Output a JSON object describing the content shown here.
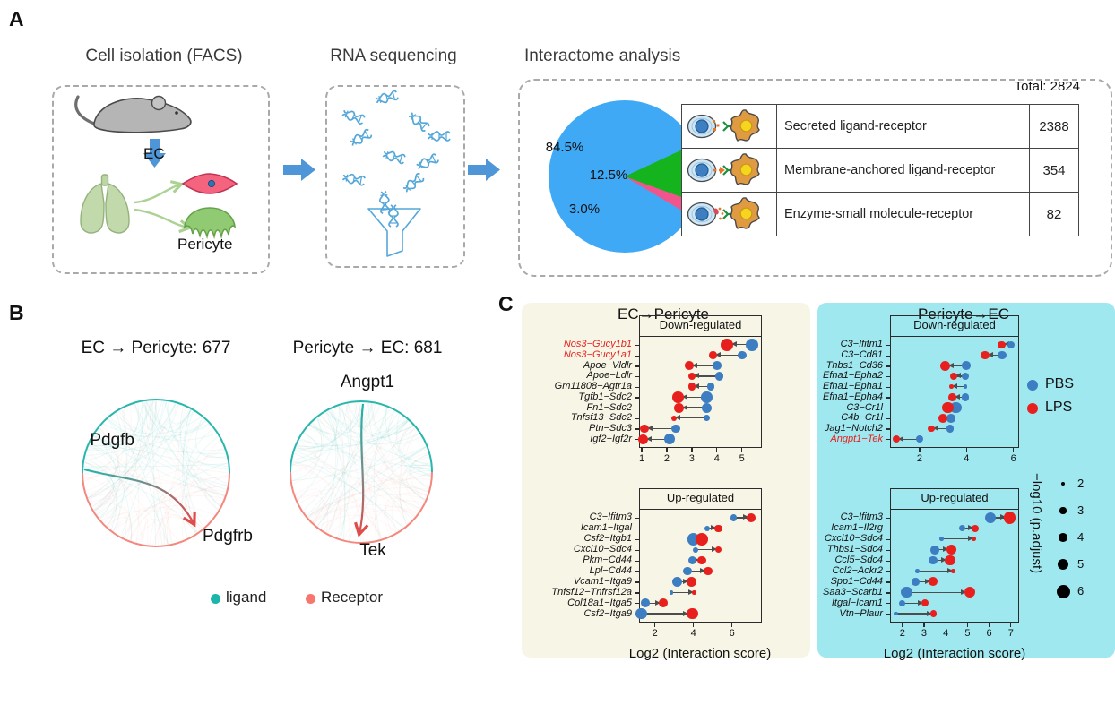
{
  "panels": {
    "a_label": "A",
    "b_label": "B",
    "c_label": "C"
  },
  "panel_a": {
    "step1_title": "Cell isolation (FACS)",
    "step2_title": "RNA sequencing",
    "step3_title": "Interactome analysis",
    "ec_label": "EC",
    "pericyte_label": "Pericyte",
    "total_label": "Total: 2824"
  },
  "panel_b": {
    "left_title": "EC → Pericyte: 677",
    "right_title": "Pericyte → EC: 681",
    "left_ligand": "Pdgfb",
    "left_receptor": "Pdgfrb",
    "right_ligand": "Angpt1",
    "right_receptor": "Tek",
    "ligand_color": "#1CB5A9",
    "receptor_color": "#F8766D",
    "legend": [
      {
        "label": "ligand",
        "color": "#1CB5A9"
      },
      {
        "label": "Receptor",
        "color": "#F8766D"
      }
    ]
  },
  "panel_c": {
    "left_title": "EC→Pericyte",
    "right_title": "Pericyte→EC",
    "xlabel": "Log2 (Interaction score)",
    "left_bg": "#F7F6E6",
    "right_bg": "#9FE8F0",
    "highlight_color": "#E8201D",
    "series_legend": [
      {
        "label": "PBS",
        "color": "#3D7DC1"
      },
      {
        "label": "LPS",
        "color": "#E8201D"
      }
    ],
    "size_legend": {
      "title": "−log10 (p.adjust)",
      "values": [
        2,
        3,
        4,
        5,
        6
      ]
    }
  },
  "chart_data": [
    {
      "type": "pie",
      "title": "Interactome analysis",
      "total": 2824,
      "total_label": "Total: 2824",
      "slices": [
        {
          "pct_label": "84.5%",
          "value": 84.5,
          "color": "#3FA9F5",
          "name": "Secreted ligand-receptor",
          "count": "2388",
          "variant": "secreted"
        },
        {
          "pct_label": "12.5%",
          "value": 12.5,
          "color": "#15B41F",
          "name": "Membrane-anchored ligand-receptor",
          "count": "354",
          "variant": "membrane"
        },
        {
          "pct_label": "3.0%",
          "value": 3.0,
          "color": "#F2548C",
          "name": "Enzyme-small molecule-receptor",
          "count": "82",
          "variant": "enzyme"
        }
      ]
    },
    {
      "type": "scatter",
      "title": "EC→Pericyte",
      "subtitle": "Down-regulated",
      "xlabel": "Log2 (Interaction score)",
      "xlim": [
        0.89,
        5.8
      ],
      "xticks": [
        1,
        2,
        3,
        4,
        5
      ],
      "series": [
        "PBS",
        "LPS"
      ],
      "rows": [
        {
          "pair": "Nos3−Gucy1b1",
          "highlight": true,
          "lps": 4.4,
          "pbs": 5.4,
          "lps_logp": 5.5,
          "pbs_logp": 5.5
        },
        {
          "pair": "Nos3−Gucy1a1",
          "highlight": true,
          "lps": 3.85,
          "pbs": 5.0,
          "lps_logp": 3.5,
          "pbs_logp": 4
        },
        {
          "pair": "Apoe−Vldlr",
          "lps": 2.9,
          "pbs": 4.0,
          "lps_logp": 4,
          "pbs_logp": 4
        },
        {
          "pair": "Apoe−Ldlr",
          "lps": 3.0,
          "pbs": 4.1,
          "lps_logp": 3.5,
          "pbs_logp": 4
        },
        {
          "pair": "Gm11808−Agtr1a",
          "lps": 3.0,
          "pbs": 3.75,
          "lps_logp": 3.5,
          "pbs_logp": 3.5
        },
        {
          "pair": "Tgfb1−Sdc2",
          "lps": 2.45,
          "pbs": 3.6,
          "lps_logp": 5,
          "pbs_logp": 5
        },
        {
          "pair": "Fn1−Sdc2",
          "lps": 2.5,
          "pbs": 3.6,
          "lps_logp": 4.5,
          "pbs_logp": 4.5
        },
        {
          "pair": "Tnfsf13−Sdc2",
          "lps": 2.3,
          "pbs": 3.6,
          "lps_logp": 2.5,
          "pbs_logp": 3
        },
        {
          "pair": "Ptn−Sdc3",
          "lps": 1.1,
          "pbs": 2.35,
          "lps_logp": 4,
          "pbs_logp": 4
        },
        {
          "pair": "Igf2−Igf2r",
          "lps": 1.05,
          "pbs": 2.1,
          "lps_logp": 4.5,
          "pbs_logp": 5
        }
      ]
    },
    {
      "type": "scatter",
      "title": "EC→Pericyte",
      "subtitle": "Up-regulated",
      "xlabel": "Log2 (Interaction score)",
      "xlim": [
        1.18,
        7.55
      ],
      "xticks": [
        2,
        4,
        6
      ],
      "series": [
        "PBS",
        "LPS"
      ],
      "rows": [
        {
          "pair": "C3−Ifitm3",
          "pbs": 6.1,
          "lps": 7.0,
          "pbs_logp": 3,
          "lps_logp": 4
        },
        {
          "pair": "Icam1−Itgal",
          "pbs": 4.7,
          "lps": 5.3,
          "pbs_logp": 2.5,
          "lps_logp": 3.5
        },
        {
          "pair": "Csf2−Itgb1",
          "pbs": 4.0,
          "lps": 4.45,
          "pbs_logp": 5.5,
          "lps_logp": 5.5
        },
        {
          "pair": "Cxcl10−Sdc4",
          "pbs": 4.1,
          "lps": 5.3,
          "pbs_logp": 2.5,
          "lps_logp": 3
        },
        {
          "pair": "Pkm−Cd44",
          "pbs": 3.95,
          "lps": 4.45,
          "pbs_logp": 4,
          "lps_logp": 4
        },
        {
          "pair": "Lpl−Cd44",
          "pbs": 3.7,
          "lps": 4.75,
          "pbs_logp": 4,
          "lps_logp": 4
        },
        {
          "pair": "Vcam1−Itga9",
          "pbs": 3.15,
          "lps": 3.9,
          "pbs_logp": 4.5,
          "lps_logp": 4.5
        },
        {
          "pair": "Tnfsf12−Tnfrsf12a",
          "pbs": 2.85,
          "lps": 4.05,
          "pbs_logp": 2,
          "lps_logp": 2,
          "arrow": true
        },
        {
          "pair": "Col18a1−Itga5",
          "pbs": 1.5,
          "lps": 2.45,
          "pbs_logp": 4,
          "lps_logp": 4
        },
        {
          "pair": "Csf2−Itga9",
          "pbs": 1.3,
          "lps": 3.95,
          "pbs_logp": 5,
          "lps_logp": 5
        }
      ]
    },
    {
      "type": "scatter",
      "title": "Pericyte→EC",
      "subtitle": "Down-regulated",
      "xlabel": "Log2 (Interaction score)",
      "xlim": [
        0.74,
        6.24
      ],
      "xticks": [
        2,
        4,
        6
      ],
      "series": [
        "PBS",
        "LPS"
      ],
      "rows": [
        {
          "pair": "C3−Ifitm1",
          "lps": 5.5,
          "pbs": 5.9,
          "lps_logp": 3.5,
          "pbs_logp": 3.5
        },
        {
          "pair": "C3−Cd81",
          "lps": 4.8,
          "pbs": 5.5,
          "lps_logp": 4,
          "pbs_logp": 4
        },
        {
          "pair": "Thbs1−Cd36",
          "lps": 3.1,
          "pbs": 4.0,
          "lps_logp": 4.5,
          "pbs_logp": 4
        },
        {
          "pair": "Efna1−Epha2",
          "lps": 3.45,
          "pbs": 3.95,
          "lps_logp": 3.5,
          "pbs_logp": 3.5
        },
        {
          "pair": "Efna1−Epha1",
          "lps": 3.35,
          "pbs": 3.95,
          "lps_logp": 2,
          "pbs_logp": 2
        },
        {
          "pair": "Efna1−Epha4",
          "lps": 3.4,
          "pbs": 3.95,
          "lps_logp": 3.5,
          "pbs_logp": 3.5
        },
        {
          "pair": "C3−Cr1l",
          "lps": 3.2,
          "pbs": 3.55,
          "lps_logp": 5,
          "pbs_logp": 5
        },
        {
          "pair": "C4b−Cr1l",
          "lps": 3.0,
          "pbs": 3.35,
          "lps_logp": 4,
          "pbs_logp": 4
        },
        {
          "pair": "Jag1−Notch2",
          "lps": 2.5,
          "pbs": 3.3,
          "lps_logp": 3,
          "pbs_logp": 3.5
        },
        {
          "pair": "Angpt1−Tek",
          "highlight": true,
          "lps": 1.0,
          "pbs": 2.0,
          "lps_logp": 3.5,
          "pbs_logp": 3.5
        }
      ]
    },
    {
      "type": "scatter",
      "title": "Pericyte→EC",
      "subtitle": "Up-regulated",
      "xlabel": "Log2 (Interaction score)",
      "xlim": [
        1.43,
        7.38
      ],
      "xticks": [
        2,
        3,
        4,
        5,
        6,
        7
      ],
      "series": [
        "PBS",
        "LPS"
      ],
      "rows": [
        {
          "pair": "C3−Ifitm3",
          "pbs": 6.05,
          "lps": 6.95,
          "pbs_logp": 5,
          "lps_logp": 5.5
        },
        {
          "pair": "Icam1−Il2rg",
          "pbs": 4.75,
          "lps": 5.35,
          "pbs_logp": 3,
          "lps_logp": 3.5
        },
        {
          "pair": "Cxcl10−Sdc4",
          "pbs": 3.8,
          "lps": 5.3,
          "pbs_logp": 2,
          "lps_logp": 2,
          "arrow": true
        },
        {
          "pair": "Thbs1−Sdc4",
          "pbs": 3.5,
          "lps": 4.25,
          "pbs_logp": 4,
          "lps_logp": 4.5
        },
        {
          "pair": "Ccl5−Sdc4",
          "pbs": 3.4,
          "lps": 4.2,
          "pbs_logp": 4,
          "lps_logp": 4.5
        },
        {
          "pair": "Ccl2−Ackr2",
          "pbs": 2.7,
          "lps": 4.35,
          "pbs_logp": 2,
          "lps_logp": 2,
          "arrow": true
        },
        {
          "pair": "Spp1−Cd44",
          "pbs": 2.6,
          "lps": 3.4,
          "pbs_logp": 3.5,
          "lps_logp": 4
        },
        {
          "pair": "Saa3−Scarb1",
          "pbs": 2.2,
          "lps": 5.1,
          "pbs_logp": 5,
          "lps_logp": 5
        },
        {
          "pair": "Itgal−Icam1",
          "pbs": 2.0,
          "lps": 3.05,
          "pbs_logp": 3,
          "lps_logp": 3.5
        },
        {
          "pair": "Vtn−Plaur",
          "pbs": 1.7,
          "lps": 3.45,
          "pbs_logp": 2,
          "lps_logp": 3
        }
      ]
    }
  ]
}
